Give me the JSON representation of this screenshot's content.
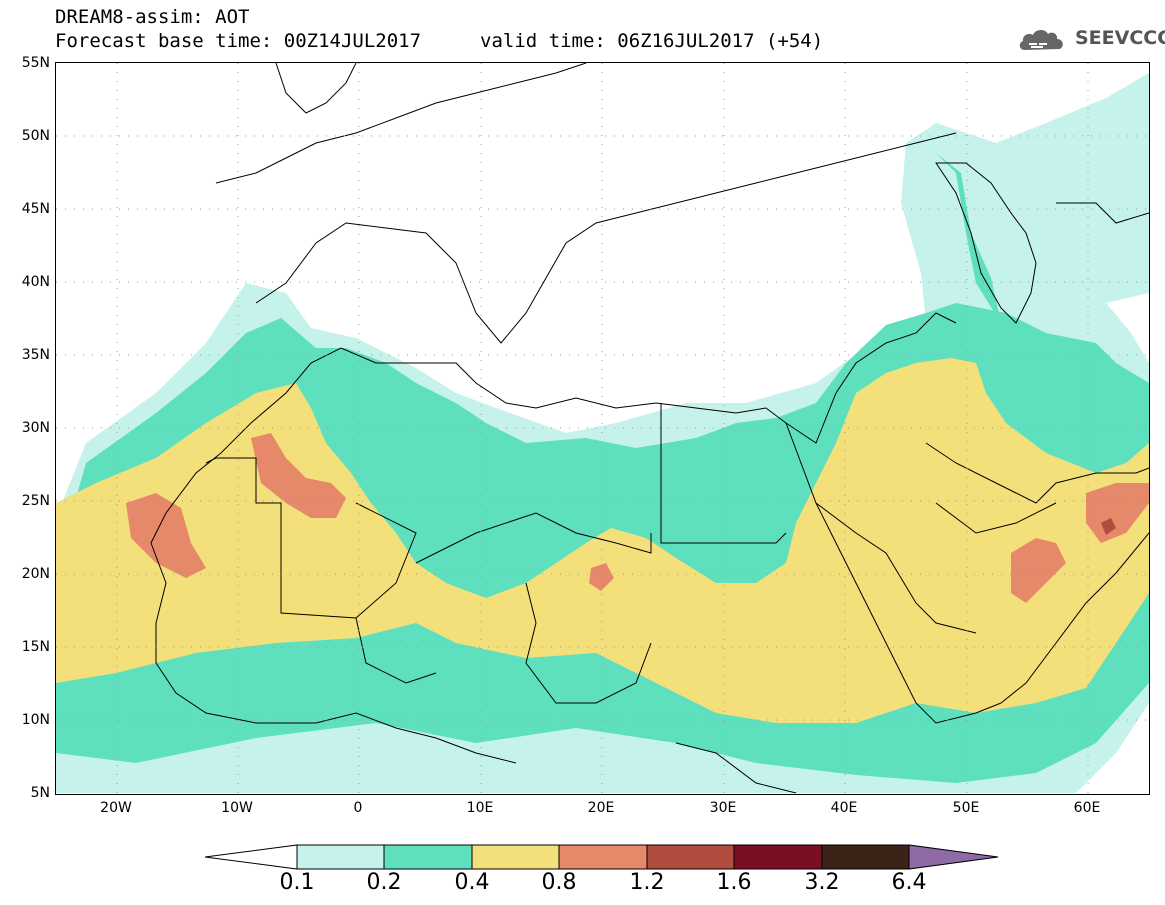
{
  "header": {
    "title": "DREAM8-assim: AOT",
    "base_time": "Forecast base time: 00Z14JUL2017",
    "valid_time": "valid time: 06Z16JUL2017 (+54)"
  },
  "logo": {
    "text": "SEEVCCC",
    "icon": "cloud-logo-icon"
  },
  "map": {
    "lat_labels": [
      "55N",
      "50N",
      "45N",
      "40N",
      "35N",
      "30N",
      "25N",
      "20N",
      "15N",
      "10N",
      "5N"
    ],
    "lon_labels": [
      "20W",
      "10W",
      "0",
      "10E",
      "20E",
      "30E",
      "40E",
      "50E",
      "60E"
    ],
    "lat_range": [
      5,
      55
    ],
    "lon_range": [
      -25,
      65
    ],
    "grid": "dotted"
  },
  "legend": {
    "thresholds": [
      "0.1",
      "0.2",
      "0.4",
      "0.8",
      "1.2",
      "1.6",
      "3.2",
      "6.4"
    ],
    "colors": {
      "below": "#ffffff",
      "c1": "#c5f2ea",
      "c2": "#5ee0be",
      "c3": "#f4e07a",
      "c4": "#e5896a",
      "c5": "#b04d3e",
      "c6": "#7a0f24",
      "c7": "#3b2318",
      "above": "#8e6aa6"
    }
  }
}
